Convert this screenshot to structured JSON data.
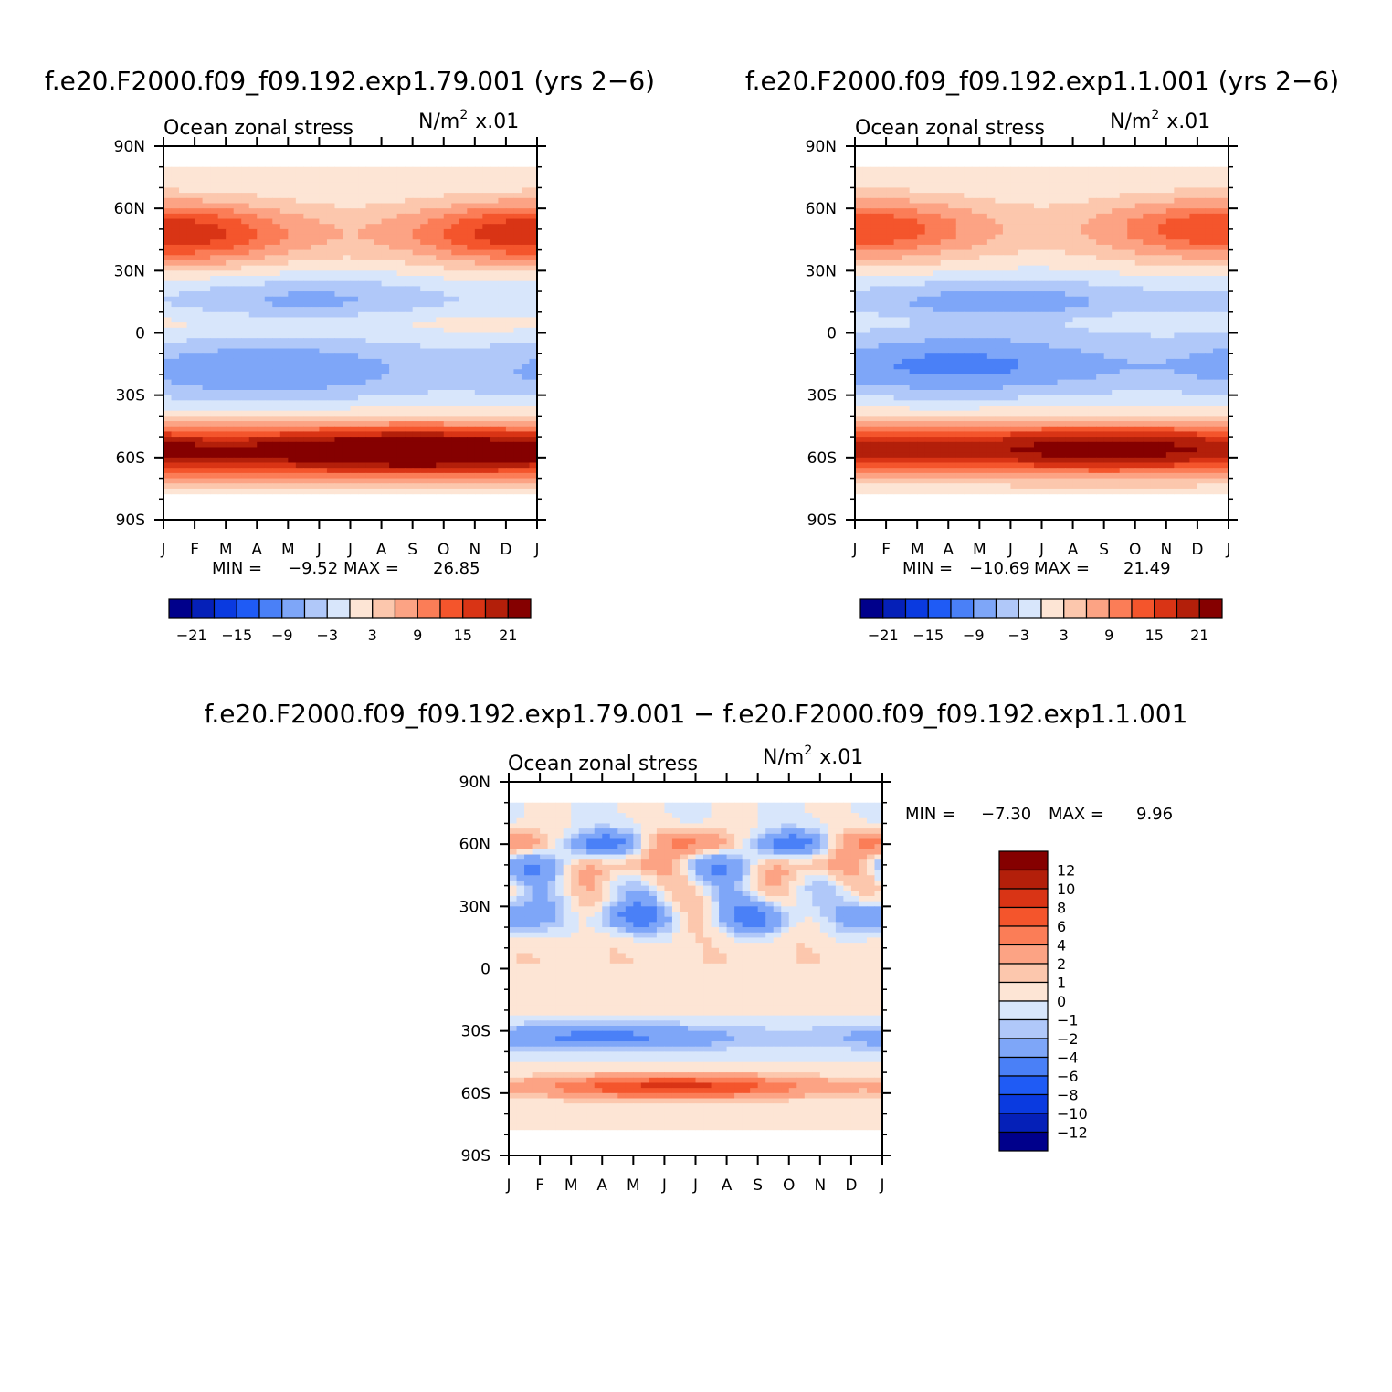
{
  "chart_data": [
    {
      "type": "heatmap",
      "id": "panel-a",
      "title": "f.e20.F2000.f09_f09.192.exp1.79.001 (yrs 2−6)",
      "left_label": "Ocean zonal stress",
      "units_main": "N/m",
      "units_sup": "2",
      "units_scale": "x.01",
      "x_ticks": [
        "J",
        "F",
        "M",
        "A",
        "M",
        "J",
        "J",
        "A",
        "S",
        "O",
        "N",
        "D",
        "J"
      ],
      "y_ticks": [
        "90N",
        "60N",
        "30N",
        "0",
        "30S",
        "60S",
        "90S"
      ],
      "min_label": "MIN =",
      "min_value": "−9.52",
      "max_label": "MAX =",
      "max_value": "26.85",
      "colorbar_ticks": [
        "−21",
        "−15",
        "−9",
        "−3",
        "3",
        "9",
        "15",
        "21"
      ],
      "ylim": [
        -90,
        90
      ],
      "features": [
        {
          "lat": 48,
          "width": 11,
          "amp": 12,
          "phase_amp": 6
        },
        {
          "lat": 15,
          "width": 9,
          "amp": -5,
          "phase_amp": 2
        },
        {
          "lat": -18,
          "width": 11,
          "amp": -7,
          "phase_amp": 2
        },
        {
          "lat": -57,
          "width": 9,
          "amp": 25,
          "phase_amp": 3
        },
        {
          "lat": 5,
          "width": 5,
          "amp": 3,
          "phase_amp": 0
        }
      ],
      "valid_lat": [
        -78,
        80
      ]
    },
    {
      "type": "heatmap",
      "id": "panel-b",
      "title": "f.e20.F2000.f09_f09.192.exp1.1.001 (yrs 2−6)",
      "left_label": "Ocean zonal stress",
      "units_main": "N/m",
      "units_sup": "2",
      "units_scale": "x.01",
      "x_ticks": [
        "J",
        "F",
        "M",
        "A",
        "M",
        "J",
        "J",
        "A",
        "S",
        "O",
        "N",
        "D",
        "J"
      ],
      "y_ticks": [
        "90N",
        "60N",
        "30N",
        "0",
        "30S",
        "60S",
        "90S"
      ],
      "min_label": "MIN =",
      "min_value": "−10.69",
      "max_label": "MAX =",
      "max_value": "21.49",
      "colorbar_ticks": [
        "−21",
        "−15",
        "−9",
        "−3",
        "3",
        "9",
        "15",
        "21"
      ],
      "ylim": [
        -90,
        90
      ],
      "features": [
        {
          "lat": 50,
          "width": 11,
          "amp": 10,
          "phase_amp": 5
        },
        {
          "lat": 14,
          "width": 9,
          "amp": -6,
          "phase_amp": 2
        },
        {
          "lat": -16,
          "width": 11,
          "amp": -8,
          "phase_amp": 2
        },
        {
          "lat": -56,
          "width": 9,
          "amp": 21,
          "phase_amp": 2
        },
        {
          "lat": 6,
          "width": 4,
          "amp": 2.5,
          "phase_amp": 0
        }
      ],
      "valid_lat": [
        -78,
        80
      ]
    },
    {
      "type": "heatmap",
      "id": "panel-diff",
      "title": "f.e20.F2000.f09_f09.192.exp1.79.001 − f.e20.F2000.f09_f09.192.exp1.1.001",
      "left_label": "Ocean zonal stress",
      "units_main": "N/m",
      "units_sup": "2",
      "units_scale": "x.01",
      "x_ticks": [
        "J",
        "F",
        "M",
        "A",
        "M",
        "J",
        "J",
        "A",
        "S",
        "O",
        "N",
        "D",
        "J"
      ],
      "y_ticks": [
        "90N",
        "60N",
        "30N",
        "0",
        "30S",
        "60S",
        "90S"
      ],
      "min_label": "MIN =",
      "min_value": "−7.30",
      "max_label": "MAX =",
      "max_value": "9.96",
      "colorbar_ticks": [
        "12",
        "10",
        "8",
        "6",
        "4",
        "2",
        "1",
        "0",
        "−1",
        "−2",
        "−4",
        "−6",
        "−8",
        "−10",
        "−12"
      ],
      "ylim": [
        -90,
        90
      ],
      "valid_lat": [
        -78,
        80
      ]
    }
  ],
  "colors": {
    "main_levels": [
      "#00008b",
      "#0520b8",
      "#0a3ae0",
      "#1f5bf5",
      "#4a80f7",
      "#7ea6f8",
      "#b0c8f9",
      "#d8e6fb",
      "#fde5d5",
      "#fcc7ad",
      "#fca384",
      "#fb7d57",
      "#f4552c",
      "#d93415",
      "#b31f0a",
      "#850000"
    ],
    "diff_levels": [
      "#00008b",
      "#0520b8",
      "#0a3ae0",
      "#1f5bf5",
      "#4a80f7",
      "#7ea6f8",
      "#b0c8f9",
      "#d8e6fb",
      "#fde5d5",
      "#fcc7ad",
      "#fca384",
      "#fb7d57",
      "#f4552c",
      "#d93415",
      "#b31f0a",
      "#850000"
    ]
  }
}
